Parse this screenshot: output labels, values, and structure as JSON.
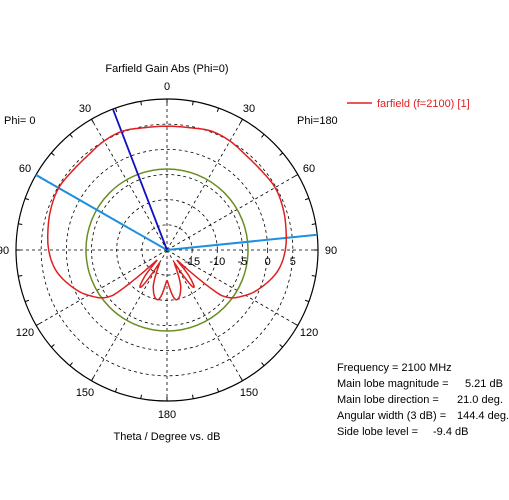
{
  "chart_data": {
    "type": "polar",
    "title": "Farfield Gain Abs (Phi=0)",
    "xlabel": "Theta / Degree vs. dB",
    "left_label": "Phi=  0",
    "right_label": "Phi=180",
    "angle_ticks": [
      "0",
      "30",
      "60",
      "90",
      "120",
      "150",
      "180",
      "150",
      "120",
      "90",
      "60",
      "30"
    ],
    "radial_ticks": [
      "-15",
      "-10",
      "-5",
      "0",
      "5"
    ],
    "radial_range": [
      -20,
      10
    ],
    "grid": true,
    "legend": {
      "placement": "top-right",
      "entries": [
        "farfield (f=2100) [1]"
      ]
    },
    "series": [
      {
        "name": "farfield (f=2100) [1]",
        "color": "#e02020",
        "theta_deg": [
          -180,
          -170,
          -160,
          -150,
          -145,
          -140,
          -135,
          -130,
          -120,
          -110,
          -100,
          -90,
          -80,
          -70,
          -60,
          -50,
          -40,
          -30,
          -21,
          -10,
          0,
          10,
          21,
          30,
          40,
          50,
          60,
          70,
          80,
          90,
          100,
          110,
          120,
          130,
          135,
          140,
          145,
          150,
          160,
          170,
          180
        ],
        "gain_db": [
          -14,
          -10,
          -12,
          -17,
          -11,
          -13,
          -17,
          -6,
          -2,
          0.5,
          2.5,
          3.5,
          4,
          4.5,
          4.8,
          4.5,
          4.5,
          5.0,
          5.21,
          4.7,
          4.6,
          4.7,
          5.21,
          5.0,
          4.5,
          4.5,
          4.8,
          4.5,
          4,
          3.5,
          2.5,
          0.5,
          -2,
          -6,
          -17,
          -13,
          -11,
          -17,
          -12,
          -10,
          -14
        ]
      }
    ],
    "reference_circle_db": -3.9,
    "main_lobe_direction_deg": 21.0,
    "beamwidth_edges_deg": [
      -60.2,
      84.2
    ],
    "info": [
      {
        "label": "Frequency = 2100 MHz",
        "value": ""
      },
      {
        "label": "Main lobe magnitude =",
        "value": "5.21 dB"
      },
      {
        "label": "Main lobe direction =",
        "value": "21.0 deg."
      },
      {
        "label": "Angular width (3 dB) =",
        "value": "144.4 deg."
      },
      {
        "label": "Side lobe level =",
        "value": "-9.4 dB"
      }
    ]
  },
  "colors": {
    "pattern": "#e02020",
    "reference_circle": "#6b8e23",
    "main_lobe_line": "#1010c0",
    "beamwidth_line": "#1e90e0",
    "grid": "#000000"
  }
}
